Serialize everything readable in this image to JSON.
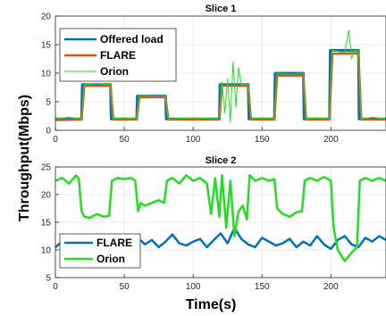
{
  "y_label": "Throughput(Mbps)",
  "x_label": "Time(s)",
  "chart_data": [
    {
      "type": "line",
      "title": "Slice 1",
      "xlim": [
        0,
        240
      ],
      "ylim": [
        0,
        20
      ],
      "x_ticks": [
        "0",
        "50",
        "100",
        "150",
        "200"
      ],
      "y_ticks": [
        "0",
        "5",
        "10",
        "15",
        "20"
      ],
      "grid": true,
      "legend": "top-left",
      "series": [
        {
          "name": "Offered load",
          "color": "#0072BD",
          "x": [
            0,
            19,
            19.5,
            40,
            40.5,
            59,
            59.5,
            80,
            80.5,
            119,
            119.5,
            140,
            140.5,
            159,
            159.5,
            180,
            180.5,
            199,
            199.5,
            220,
            220.5,
            240
          ],
          "y": [
            2,
            2,
            8,
            8,
            2,
            2,
            6,
            6,
            2,
            2,
            8,
            8,
            2,
            2,
            10,
            10,
            2,
            2,
            14,
            14,
            2,
            2
          ]
        },
        {
          "name": "FLARE",
          "color": "#D95319",
          "x": [
            0,
            19,
            21,
            40,
            42,
            59,
            61,
            80,
            82,
            119,
            121,
            140,
            142,
            159,
            161,
            180,
            182,
            199,
            201,
            220,
            222,
            240
          ],
          "y": [
            1.8,
            1.9,
            7.8,
            7.8,
            1.9,
            1.9,
            5.8,
            5.8,
            1.9,
            1.9,
            7.8,
            7.8,
            1.9,
            1.9,
            9.6,
            9.6,
            1.9,
            1.9,
            13.4,
            13.5,
            1.9,
            1.9
          ]
        },
        {
          "name": "Orion",
          "color": "#22DD22",
          "x": [
            0,
            10,
            19,
            21,
            30,
            40,
            42,
            50,
            59,
            61,
            70,
            80,
            82,
            100,
            119,
            121,
            123,
            125,
            127,
            129,
            131,
            133,
            135,
            140,
            142,
            150,
            159,
            161,
            170,
            180,
            182,
            190,
            199,
            201,
            210,
            213,
            215,
            217,
            220,
            222,
            230,
            240
          ],
          "y": [
            2,
            2.3,
            2,
            8,
            8.2,
            8,
            2,
            2.2,
            2,
            6.2,
            6,
            6,
            2,
            2.2,
            2,
            8.5,
            3,
            9,
            1.5,
            12,
            4,
            11,
            8,
            8,
            2,
            2.2,
            2,
            10,
            9.8,
            10,
            2,
            2.2,
            2,
            14,
            13.6,
            17.5,
            12.5,
            14,
            14,
            2,
            2.3,
            2
          ]
        }
      ]
    },
    {
      "type": "line",
      "title": "Slice 2",
      "xlim": [
        0,
        240
      ],
      "ylim": [
        5,
        25
      ],
      "x_ticks": [
        "0",
        "50",
        "100",
        "150",
        "200"
      ],
      "y_ticks": [
        "5",
        "10",
        "15",
        "20",
        "25"
      ],
      "grid": true,
      "legend": "bottom-left",
      "series": [
        {
          "name": "FLARE",
          "color": "#0072BD",
          "x": [
            0,
            5,
            10,
            15,
            20,
            25,
            30,
            35,
            40,
            45,
            50,
            55,
            60,
            65,
            70,
            75,
            80,
            85,
            90,
            95,
            100,
            105,
            110,
            115,
            120,
            125,
            130,
            135,
            140,
            145,
            150,
            155,
            160,
            165,
            170,
            175,
            180,
            185,
            190,
            195,
            200,
            205,
            210,
            215,
            220,
            225,
            230,
            235,
            240
          ],
          "y": [
            10.5,
            11.5,
            10,
            12,
            10.8,
            11.5,
            12.5,
            11.2,
            10.5,
            12,
            11.5,
            10.8,
            12.2,
            11,
            11.8,
            10.5,
            11.5,
            12.8,
            11.2,
            10.8,
            11.5,
            12,
            10.5,
            11.8,
            13,
            11.2,
            14,
            12,
            11,
            10.5,
            12.2,
            11.5,
            10.8,
            11.2,
            12,
            10.5,
            11.5,
            10.8,
            12.5,
            11,
            10.2,
            11.8,
            12.5,
            11,
            10.5,
            12.2,
            11.5,
            12.5,
            11.8
          ]
        },
        {
          "name": "Orion",
          "color": "#22DD22",
          "x": [
            0,
            5,
            10,
            15,
            17,
            19,
            21,
            25,
            30,
            35,
            39,
            41,
            45,
            50,
            55,
            58,
            60,
            62,
            65,
            70,
            75,
            79,
            81,
            85,
            90,
            95,
            100,
            105,
            110,
            113,
            116,
            119,
            121,
            124,
            127,
            130,
            133,
            136,
            139,
            141,
            145,
            150,
            155,
            159,
            161,
            165,
            170,
            175,
            179,
            181,
            185,
            190,
            195,
            200,
            202,
            205,
            210,
            215,
            219,
            221,
            225,
            230,
            235,
            240
          ],
          "y": [
            22.5,
            23,
            22,
            23.5,
            22.8,
            17,
            16,
            15.8,
            16.5,
            16,
            16.2,
            22.5,
            23,
            22.8,
            23,
            22.5,
            17,
            18.5,
            18,
            18.5,
            19,
            18.5,
            22.5,
            23,
            22,
            23.5,
            22.5,
            23,
            22,
            16.5,
            23,
            16,
            23.5,
            14,
            22.5,
            12.5,
            17,
            18,
            15.5,
            23.5,
            22.5,
            23,
            22.5,
            22.8,
            17.5,
            16.5,
            16,
            16.8,
            17,
            22.5,
            23,
            22.5,
            23.2,
            22.5,
            14,
            10,
            8,
            9.5,
            10.5,
            22.5,
            23,
            22.5,
            23,
            22.5
          ]
        }
      ]
    }
  ]
}
